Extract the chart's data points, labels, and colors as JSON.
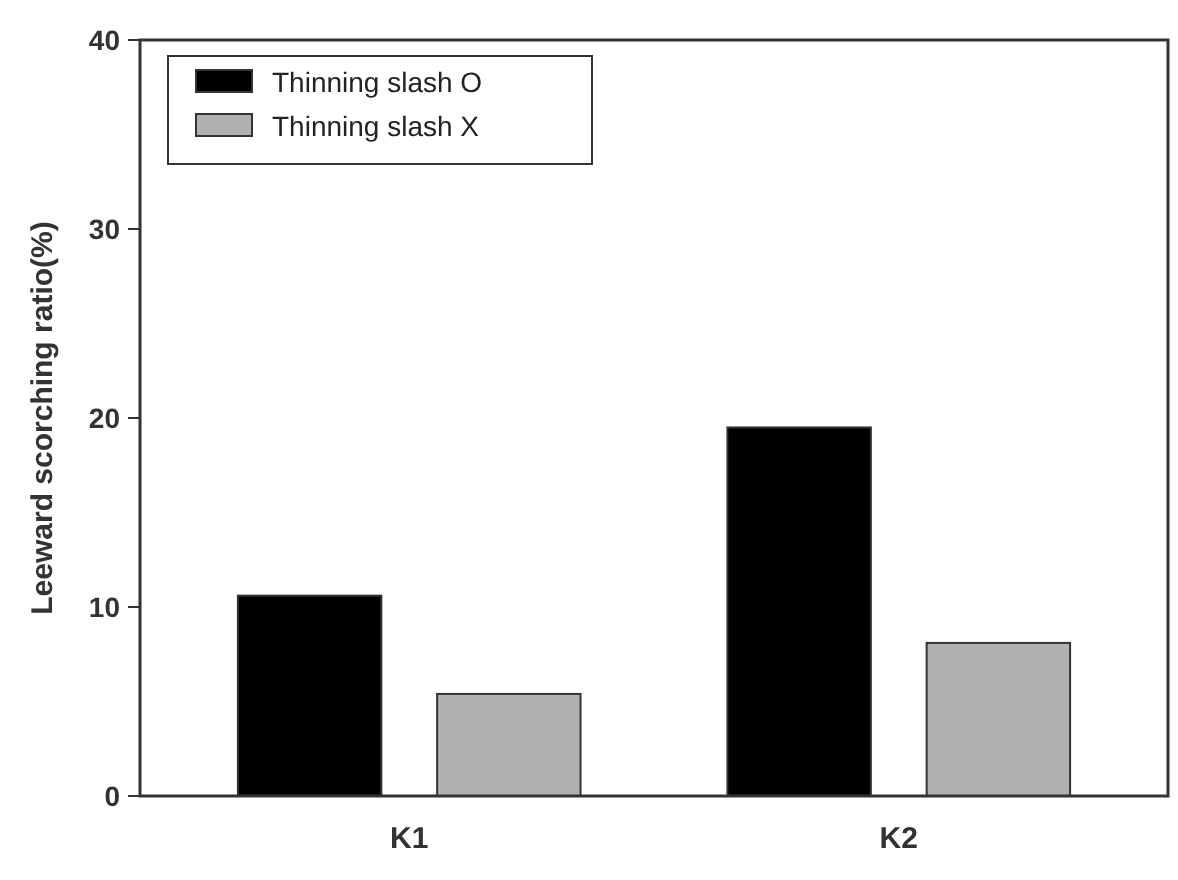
{
  "chart_data": {
    "type": "bar",
    "ylabel": "Leeward scorching ratio(%)",
    "categories": [
      "K1",
      "K2"
    ],
    "series": [
      {
        "name": "Thinning slash O",
        "color": "#000000",
        "values": [
          10.6,
          19.5
        ]
      },
      {
        "name": "Thinning slash X",
        "color": "#b0b0b0",
        "values": [
          5.4,
          8.1
        ]
      }
    ],
    "ylim": [
      0,
      40
    ],
    "yticks": [
      0,
      10,
      20,
      30,
      40
    ],
    "legend": "top left"
  }
}
